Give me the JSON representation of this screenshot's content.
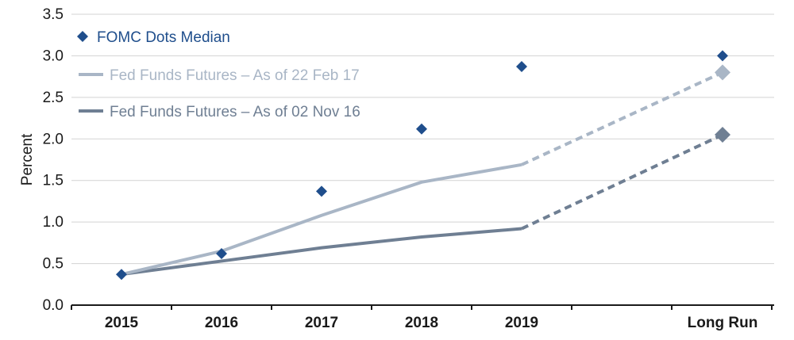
{
  "chart_data": {
    "type": "line",
    "ylabel": "Percent",
    "xlabel": "",
    "ylim": [
      0,
      3.5
    ],
    "yticks": [
      "0.0",
      "0.5",
      "1.0",
      "1.5",
      "2.0",
      "2.5",
      "3.0",
      "3.5"
    ],
    "grid": "horizontal",
    "legend_position": "top-left",
    "categories": [
      "2015",
      "2016",
      "2017",
      "2018",
      "2019",
      "Long Run"
    ],
    "series": [
      {
        "name": "FOMC Dots Median",
        "style": "markers",
        "color": "#1f4e8c",
        "values": [
          0.37,
          0.62,
          1.37,
          2.12,
          2.87,
          3.0
        ]
      },
      {
        "name": "Fed Funds Futures – As of 22 Feb 17",
        "style": "line",
        "color": "#a9b6c6",
        "values": [
          0.37,
          0.65,
          1.08,
          1.48,
          1.69,
          2.8
        ],
        "dashed_segment_to_last": true
      },
      {
        "name": "Fed Funds Futures – As of 02 Nov 16",
        "style": "line",
        "color": "#6f7f93",
        "values": [
          0.37,
          0.53,
          0.69,
          0.82,
          0.92,
          2.05
        ],
        "dashed_segment_to_last": true
      }
    ]
  },
  "colors": {
    "grid": "#d3d3d3",
    "axis": "#1a1a1a"
  }
}
